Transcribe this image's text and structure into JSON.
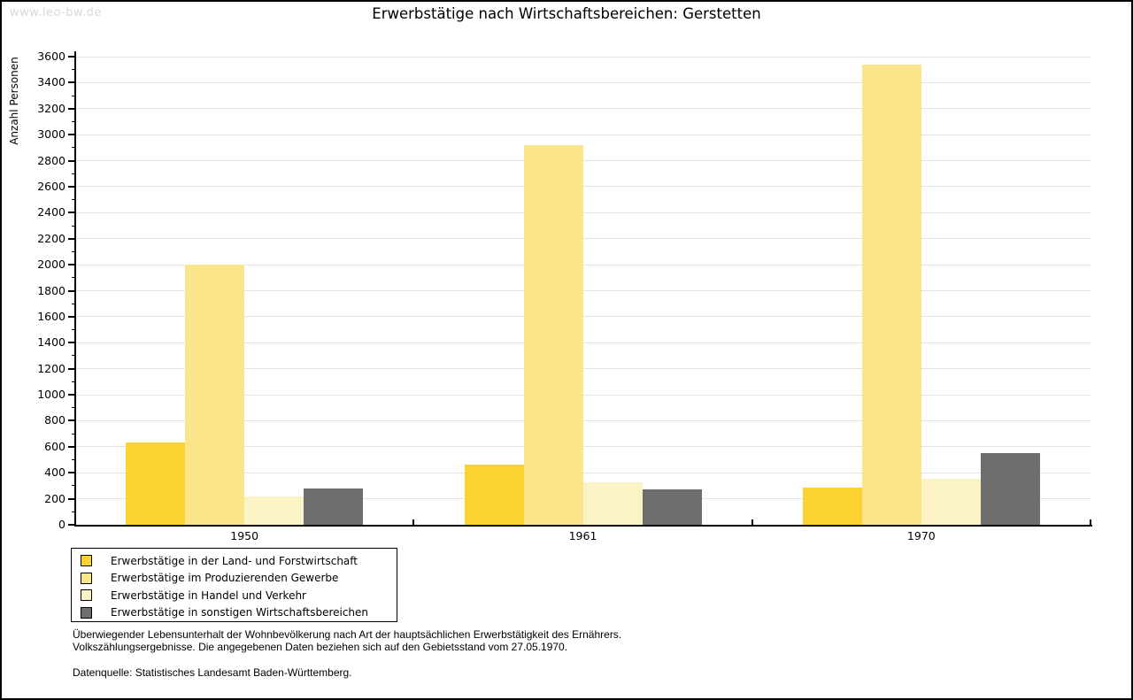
{
  "watermark": "www.leo-bw.de",
  "title": "Erwerbstätige nach Wirtschaftsbereichen: Gerstetten",
  "chart_data": {
    "type": "bar",
    "title": "Erwerbstätige nach Wirtschaftsbereichen: Gerstetten",
    "xlabel": "",
    "ylabel": "Anzahl Personen",
    "categories": [
      "1950",
      "1961",
      "1970"
    ],
    "series": [
      {
        "name": "Erwerbstätige in der Land- und Forstwirtschaft",
        "color": "#fcd232",
        "values": [
          630,
          460,
          285
        ]
      },
      {
        "name": "Erwerbstätige im Produzierenden Gewerbe",
        "color": "#fbe58b",
        "values": [
          2000,
          2920,
          3540
        ]
      },
      {
        "name": "Erwerbstätige in Handel und Verkehr",
        "color": "#fbf2c6",
        "values": [
          220,
          330,
          355
        ]
      },
      {
        "name": "Erwerbstätige in sonstigen Wirtschaftsbereichen",
        "color": "#6e6e6e",
        "values": [
          280,
          270,
          550
        ]
      }
    ],
    "ylim": [
      0,
      3600
    ],
    "ytick_step": 200,
    "ytick_minor_step": 100,
    "grid": "horizontal",
    "legend_position": "bottom-left"
  },
  "colors": {
    "grid": "#e2e2e2",
    "axis": "#000000",
    "watermark": "#d8d8d8",
    "frame": "#000000"
  },
  "footnotes": {
    "line1": "Überwiegender Lebensunterhalt der Wohnbevölkerung nach Art der hauptsächlichen Erwerbstätigkeit des Ernährers.",
    "line2": "Volkszählungsergebnisse. Die angegebenen Daten beziehen sich auf den Gebietsstand vom 27.05.1970.",
    "source": "Datenquelle: Statistisches Landesamt Baden-Württemberg."
  }
}
